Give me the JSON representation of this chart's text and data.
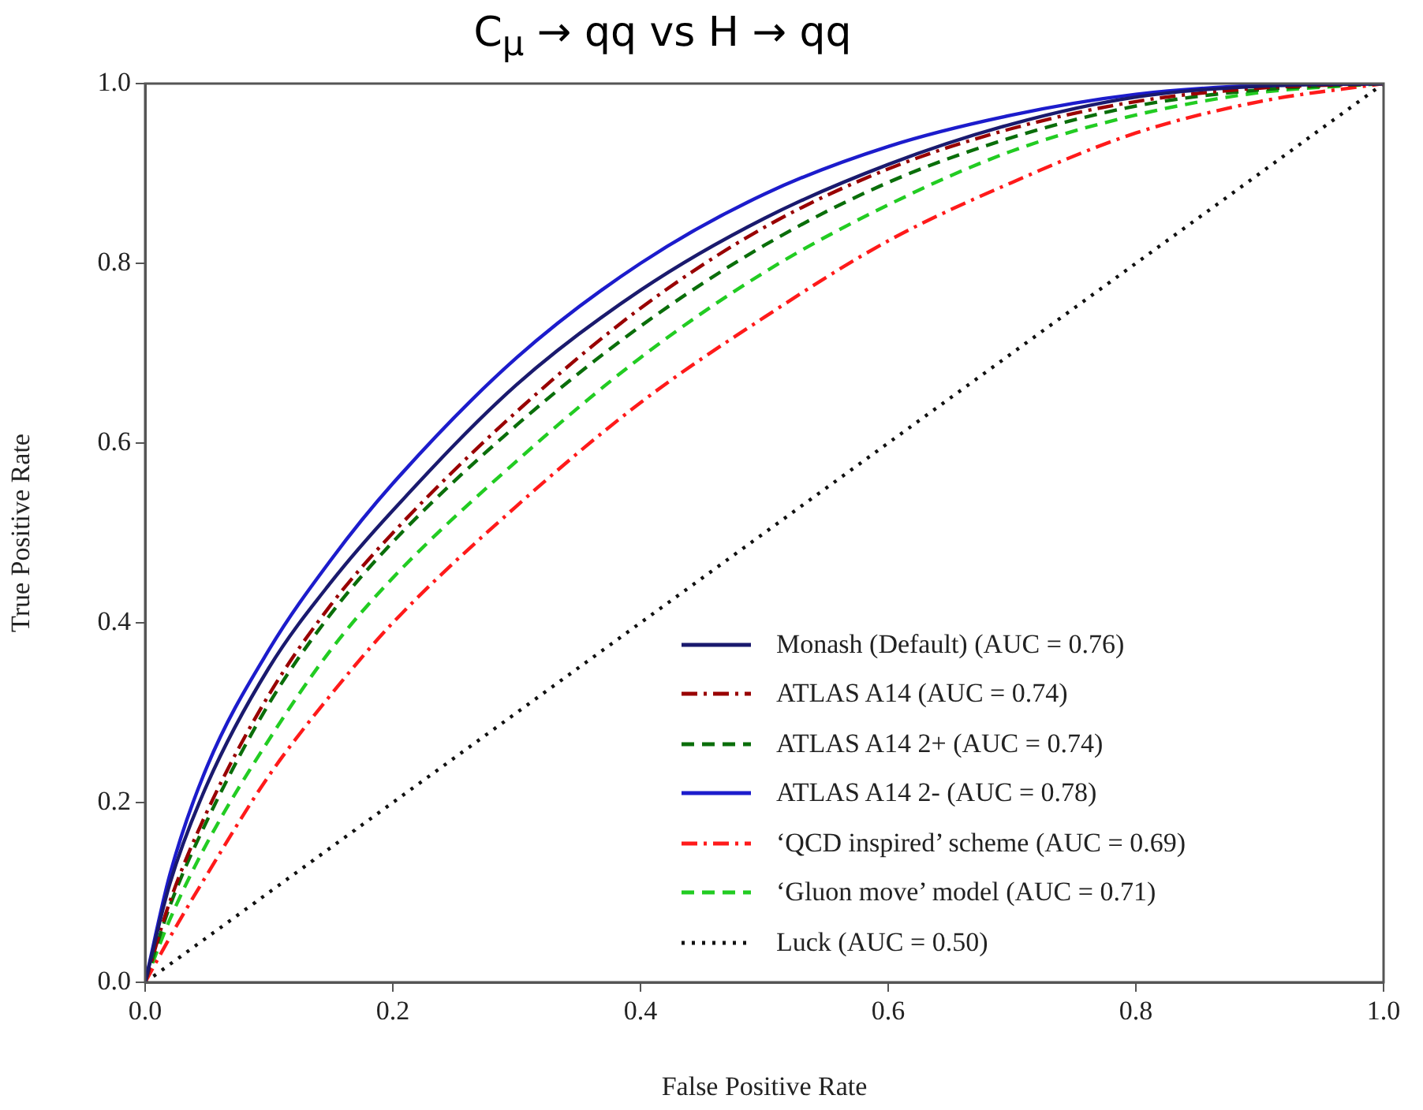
{
  "chart_data": {
    "type": "line",
    "title": "C$_{μ}$ → qq vs H → qq",
    "xlabel": "False Positive Rate",
    "ylabel": "True Positive Rate",
    "xlim": [
      0,
      1
    ],
    "ylim": [
      0,
      1
    ],
    "xticks": [
      {
        "value": 0,
        "label": "0.0"
      },
      {
        "value": 0.2,
        "label": "0.2"
      },
      {
        "value": 0.4,
        "label": "0.4"
      },
      {
        "value": 0.6,
        "label": "0.6"
      },
      {
        "value": 0.8,
        "label": "0.8"
      },
      {
        "value": 1,
        "label": "1.0"
      }
    ],
    "yticks": [
      {
        "value": 0,
        "label": "0.0"
      },
      {
        "value": 0.2,
        "label": "0.2"
      },
      {
        "value": 0.4,
        "label": "0.4"
      },
      {
        "value": 0.6,
        "label": "0.6"
      },
      {
        "value": 0.8,
        "label": "0.8"
      },
      {
        "value": 1,
        "label": "1.0"
      }
    ],
    "grid": false,
    "legend": "bottom right",
    "marker": "none",
    "x": [
      0,
      0.02,
      0.05,
      0.1,
      0.15,
      0.2,
      0.3,
      0.4,
      0.5,
      0.6,
      0.7,
      0.8,
      0.9,
      1
    ],
    "series": [
      {
        "name": "Monash (Default) (AUC = 0.76)",
        "color": "#1a1a6e",
        "line_style": "solid",
        "values": [
          0,
          0.11,
          0.22,
          0.35,
          0.445,
          0.525,
          0.665,
          0.77,
          0.85,
          0.91,
          0.955,
          0.985,
          0.997,
          1
        ]
      },
      {
        "name": "ATLAS A14 (AUC = 0.74)",
        "color": "#990000",
        "line_style": "dashdot",
        "values": [
          0,
          0.09,
          0.19,
          0.32,
          0.42,
          0.5,
          0.635,
          0.75,
          0.84,
          0.905,
          0.95,
          0.98,
          0.995,
          1
        ]
      },
      {
        "name": "ATLAS A14 2+ (AUC = 0.74)",
        "color": "#0a6e0a",
        "line_style": "dashed",
        "values": [
          0,
          0.085,
          0.18,
          0.31,
          0.41,
          0.49,
          0.62,
          0.73,
          0.82,
          0.89,
          0.94,
          0.975,
          0.993,
          1
        ]
      },
      {
        "name": "ATLAS A14 2- (AUC = 0.78)",
        "color": "#1c1ccc",
        "line_style": "solid",
        "values": [
          0,
          0.12,
          0.24,
          0.37,
          0.47,
          0.555,
          0.695,
          0.8,
          0.877,
          0.93,
          0.965,
          0.988,
          0.998,
          1
        ]
      },
      {
        "name": "‘QCD inspired’ scheme (AUC = 0.69)",
        "color": "#ff1a1a",
        "line_style": "dashdot",
        "values": [
          0,
          0.05,
          0.12,
          0.23,
          0.32,
          0.4,
          0.53,
          0.645,
          0.74,
          0.825,
          0.89,
          0.945,
          0.98,
          1
        ]
      },
      {
        "name": "‘Gluon move’ model (AUC = 0.71)",
        "color": "#22cc22",
        "line_style": "dashed",
        "values": [
          0,
          0.07,
          0.155,
          0.27,
          0.37,
          0.45,
          0.58,
          0.695,
          0.79,
          0.865,
          0.925,
          0.965,
          0.99,
          1
        ]
      },
      {
        "name": "Luck (AUC = 0.50)",
        "color": "#111111",
        "line_style": "dotted",
        "x": [
          0,
          1
        ],
        "values": [
          0,
          1
        ]
      }
    ]
  }
}
